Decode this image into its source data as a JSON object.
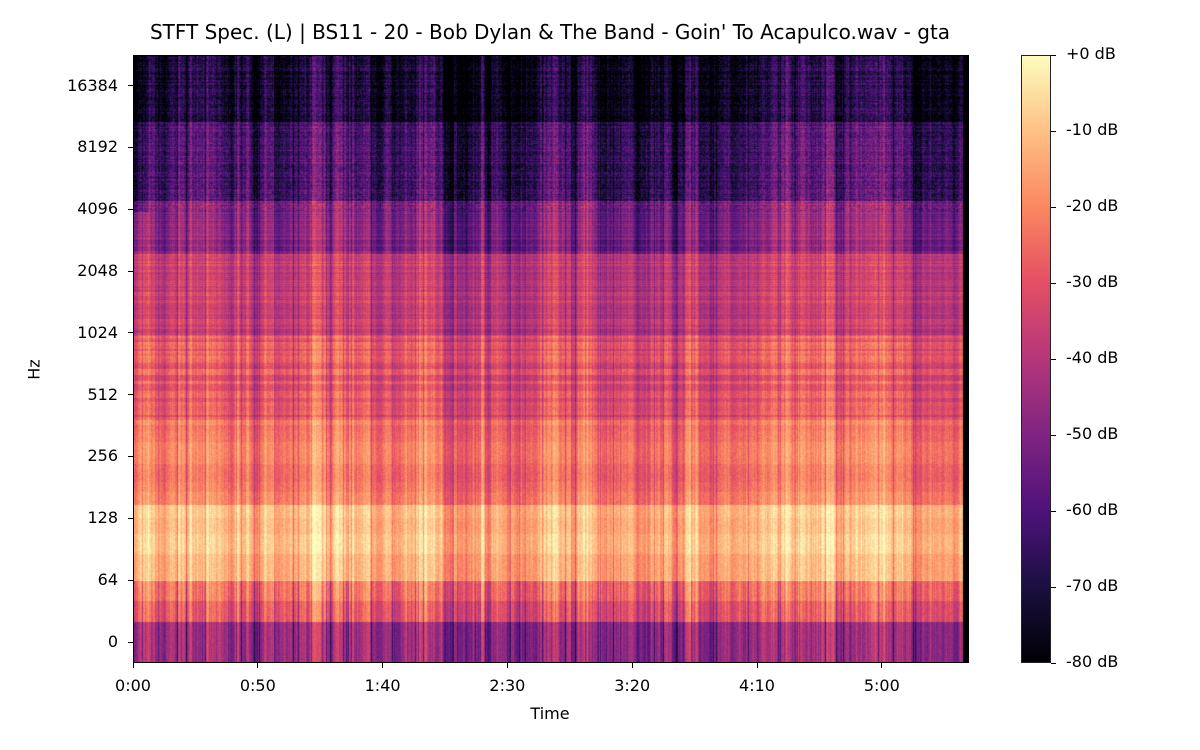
{
  "chart_data": {
    "type": "heatmap",
    "title": "STFT Spec. (L) | BS11 - 20 - Bob Dylan & The Band - Goin' To Acapulco.wav - gta",
    "xlabel": "Time",
    "ylabel": "Hz",
    "x_ticks": [
      "0:00",
      "0:50",
      "1:40",
      "2:30",
      "3:20",
      "4:10",
      "5:00"
    ],
    "x_tick_seconds": [
      0,
      50,
      100,
      150,
      200,
      250,
      300
    ],
    "xlim_seconds": [
      0,
      334
    ],
    "audio_end_seconds": 332,
    "y_scale": "symlog",
    "y_ticks": [
      "0",
      "64",
      "128",
      "256",
      "512",
      "1024",
      "2048",
      "4096",
      "8192",
      "16384"
    ],
    "y_tick_values": [
      0,
      64,
      128,
      256,
      512,
      1024,
      2048,
      4096,
      8192,
      16384
    ],
    "colorbar": {
      "colormap": "magma",
      "range_db": [
        -80,
        0
      ],
      "ticks": [
        "+0 dB",
        "-10 dB",
        "-20 dB",
        "-30 dB",
        "-40 dB",
        "-50 dB",
        "-60 dB",
        "-70 dB",
        "-80 dB"
      ],
      "tick_values": [
        0,
        -10,
        -20,
        -30,
        -40,
        -50,
        -60,
        -70,
        -80
      ]
    },
    "approx_band_levels_db": [
      {
        "freq_from": 0,
        "freq_to": 21,
        "level": -45
      },
      {
        "freq_from": 21,
        "freq_to": 64,
        "level": -28
      },
      {
        "freq_from": 64,
        "freq_to": 150,
        "level": -14
      },
      {
        "freq_from": 150,
        "freq_to": 400,
        "level": -24
      },
      {
        "freq_from": 400,
        "freq_to": 1000,
        "level": -30
      },
      {
        "freq_from": 1000,
        "freq_to": 2500,
        "level": -37
      },
      {
        "freq_from": 2500,
        "freq_to": 4500,
        "level": -50
      },
      {
        "freq_from": 4500,
        "freq_to": 11000,
        "level": -62
      },
      {
        "freq_from": 11000,
        "freq_to": 22050,
        "level": -73
      }
    ]
  }
}
